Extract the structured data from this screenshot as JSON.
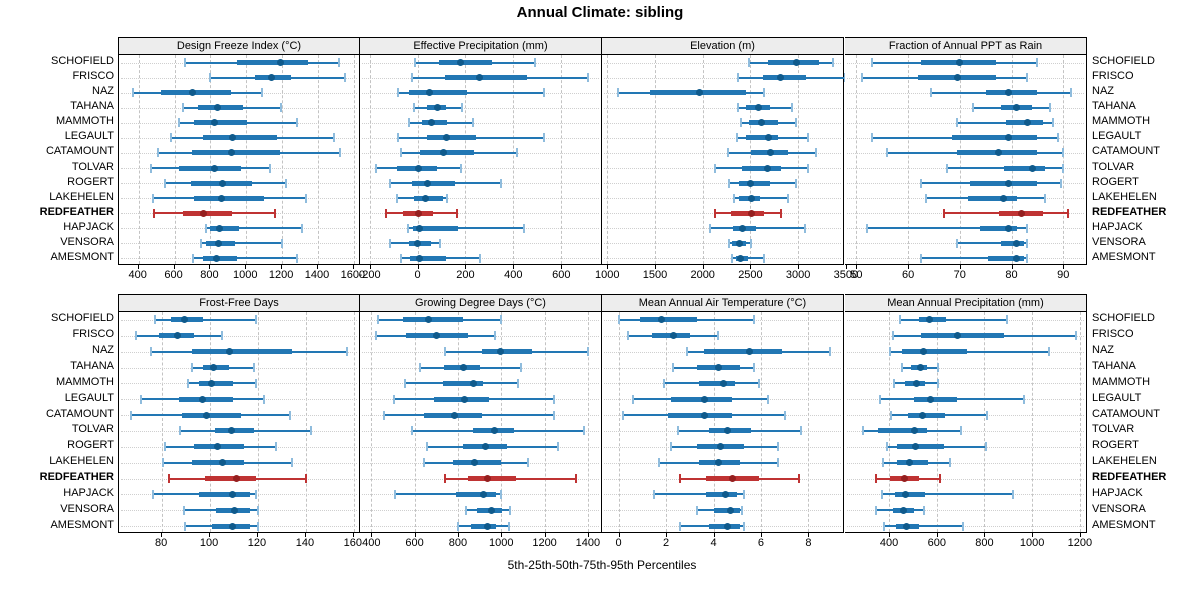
{
  "title": "Annual Climate: sibling",
  "caption": "5th-25th-50th-75th-95th Percentiles",
  "colors": {
    "blue_line": "#2277b4",
    "blue_cap": "#8fbcdd",
    "blue_box": "#2277b4",
    "blue_dot": "#0f5a8c",
    "red_line": "#bf3333",
    "red_cap": "#bf3333",
    "red_box": "#bf3333",
    "red_dot": "#951f1f",
    "header_bg": "#ededed",
    "grid_v": "#c3c3c3",
    "grid_h": "#cfcfcf",
    "border": "#000000"
  },
  "chart_data": {
    "type": "dotplot",
    "style": "5-25-50-75-95 percentile whisker plot, lattice layout, 2 rows x 4 panels",
    "legend": "whisker = 5th-95th, thick bar = 25th-75th, dot = 50th percentile",
    "highlight_station": "REDFEATHER",
    "stations": [
      "SCHOFIELD",
      "FRISCO",
      "NAZ",
      "TAHANA",
      "MAMMOTH",
      "LEGAULT",
      "CATAMOUNT",
      "TOLVAR",
      "ROGERT",
      "LAKEHELEN",
      "REDFEATHER",
      "HAPJACK",
      "VENSORA",
      "AMESMONT"
    ],
    "panels": [
      {
        "title": "Design Freeze Index (°C)",
        "ticks": [
          400,
          600,
          800,
          1000,
          1200,
          1400,
          1600
        ],
        "xlim": [
          290,
          1640
        ],
        "group": "top",
        "percentiles": [
          [
            660,
            950,
            1190,
            1345,
            1515
          ],
          [
            800,
            1050,
            1140,
            1250,
            1550
          ],
          [
            370,
            525,
            700,
            915,
            1090
          ],
          [
            645,
            730,
            840,
            980,
            1195
          ],
          [
            625,
            710,
            825,
            1005,
            1285
          ],
          [
            580,
            760,
            925,
            1170,
            1490
          ],
          [
            510,
            700,
            920,
            1190,
            1525
          ],
          [
            470,
            625,
            820,
            970,
            1130
          ],
          [
            545,
            690,
            865,
            1030,
            1220
          ],
          [
            480,
            710,
            860,
            1100,
            1335
          ],
          [
            485,
            645,
            760,
            920,
            1160
          ],
          [
            775,
            800,
            850,
            960,
            1310
          ],
          [
            750,
            775,
            845,
            935,
            1200
          ],
          [
            705,
            760,
            835,
            950,
            1285
          ]
        ]
      },
      {
        "title": "Effective Precipitation (mm)",
        "ticks": [
          -200,
          0,
          200,
          400,
          600
        ],
        "xlim": [
          -240,
          770
        ],
        "group": "top",
        "percentiles": [
          [
            -10,
            90,
            180,
            310,
            490
          ],
          [
            -25,
            115,
            260,
            455,
            710
          ],
          [
            -80,
            -35,
            50,
            205,
            530
          ],
          [
            -15,
            40,
            85,
            120,
            185
          ],
          [
            -35,
            20,
            60,
            125,
            230
          ],
          [
            -80,
            40,
            120,
            245,
            530
          ],
          [
            -70,
            10,
            110,
            235,
            415
          ],
          [
            -175,
            -85,
            5,
            80,
            180
          ],
          [
            -115,
            -25,
            40,
            155,
            350
          ],
          [
            -85,
            -15,
            35,
            105,
            122
          ],
          [
            -130,
            -60,
            5,
            65,
            165
          ],
          [
            -40,
            -20,
            10,
            170,
            445
          ],
          [
            -115,
            -35,
            0,
            55,
            95
          ],
          [
            -70,
            -30,
            10,
            120,
            260
          ]
        ]
      },
      {
        "title": "Elevation (m)",
        "ticks": [
          1000,
          1500,
          2000,
          2500,
          3000,
          3500
        ],
        "xlim": [
          945,
          3480
        ],
        "group": "top",
        "percentiles": [
          [
            2490,
            2680,
            2985,
            3220,
            3360
          ],
          [
            2370,
            2630,
            2820,
            3080,
            3490
          ],
          [
            1115,
            1445,
            1965,
            2455,
            2645
          ],
          [
            2370,
            2455,
            2585,
            2700,
            2940
          ],
          [
            2405,
            2490,
            2620,
            2785,
            2975
          ],
          [
            2355,
            2455,
            2690,
            2785,
            3100
          ],
          [
            2265,
            2505,
            2715,
            2890,
            3185
          ],
          [
            2125,
            2415,
            2675,
            2820,
            3100
          ],
          [
            2280,
            2385,
            2505,
            2700,
            2975
          ],
          [
            2325,
            2385,
            2515,
            2605,
            2890
          ],
          [
            2125,
            2300,
            2515,
            2645,
            2820
          ],
          [
            2080,
            2315,
            2415,
            2560,
            3070
          ],
          [
            2280,
            2310,
            2385,
            2455,
            2505
          ],
          [
            2310,
            2345,
            2400,
            2470,
            2645
          ]
        ]
      },
      {
        "title": "Fraction of Annual PPT as Rain",
        "ticks": [
          50,
          60,
          70,
          80,
          90
        ],
        "xlim": [
          47.8,
          94.6
        ],
        "group": "top",
        "percentiles": [
          [
            53,
            62.5,
            70,
            77,
            85
          ],
          [
            51,
            62,
            69.5,
            77,
            83
          ],
          [
            64.5,
            75,
            79.5,
            85,
            91.5
          ],
          [
            72.5,
            78,
            81,
            84,
            87.5
          ],
          [
            69.5,
            79,
            83,
            86,
            88
          ],
          [
            53,
            68.5,
            79.5,
            85,
            89
          ],
          [
            56,
            69.5,
            77.5,
            85,
            90
          ],
          [
            67.5,
            78.5,
            84,
            86.5,
            90
          ],
          [
            62.5,
            72,
            79.5,
            85,
            89.5
          ],
          [
            63.5,
            71.5,
            78.5,
            81,
            86.5
          ],
          [
            67,
            77.5,
            82,
            86,
            91
          ],
          [
            52,
            74,
            79.5,
            81,
            83
          ],
          [
            69.5,
            78,
            81,
            82.5,
            83
          ],
          [
            62.5,
            75.5,
            81,
            82.5,
            83
          ]
        ]
      },
      {
        "title": "Frost-Free Days",
        "ticks": [
          80,
          100,
          120,
          140,
          160
        ],
        "xlim": [
          62,
          163
        ],
        "group": "bottom",
        "percentiles": [
          [
            77,
            83.5,
            89.5,
            97,
            119
          ],
          [
            69,
            78.5,
            86.5,
            93.5,
            105
          ],
          [
            75.5,
            92.5,
            108,
            134,
            157
          ],
          [
            92.5,
            97,
            101.5,
            108,
            118.5
          ],
          [
            91,
            95.5,
            100.5,
            109.5,
            119
          ],
          [
            71,
            87,
            97,
            109.5,
            122.5
          ],
          [
            67,
            88.5,
            98.5,
            113,
            133.5
          ],
          [
            87.5,
            102,
            109,
            118.5,
            142
          ],
          [
            81,
            93.5,
            103,
            114,
            127.5
          ],
          [
            80.5,
            92.5,
            105,
            114,
            134
          ],
          [
            83,
            98,
            111,
            119,
            140
          ],
          [
            76,
            95.5,
            109.5,
            116.5,
            119
          ],
          [
            89,
            102.5,
            110,
            116.5,
            120
          ],
          [
            89.5,
            101,
            109.5,
            116.5,
            120
          ]
        ]
      },
      {
        "title": "Growing Degree Days (°C)",
        "ticks": [
          400,
          600,
          800,
          1000,
          1200,
          1400
        ],
        "xlim": [
          348,
          1465
        ],
        "group": "bottom",
        "percentiles": [
          [
            430,
            545,
            665,
            825,
            1000
          ],
          [
            420,
            560,
            700,
            845,
            970
          ],
          [
            740,
            910,
            995,
            1140,
            1400
          ],
          [
            625,
            735,
            825,
            900,
            1090
          ],
          [
            555,
            730,
            870,
            915,
            1075
          ],
          [
            505,
            690,
            830,
            945,
            1245
          ],
          [
            460,
            645,
            785,
            910,
            1245
          ],
          [
            590,
            870,
            970,
            1060,
            1380
          ],
          [
            655,
            825,
            925,
            1025,
            1260
          ],
          [
            645,
            775,
            875,
            1000,
            1125
          ],
          [
            740,
            845,
            935,
            1070,
            1345
          ],
          [
            510,
            790,
            920,
            975,
            1000
          ],
          [
            835,
            890,
            955,
            1003,
            1040
          ],
          [
            800,
            860,
            935,
            975,
            1035
          ]
        ]
      },
      {
        "title": "Mean Annual Air Temperature (°C)",
        "ticks": [
          0,
          2,
          4,
          6,
          8
        ],
        "xlim": [
          -0.7,
          9.5
        ],
        "group": "bottom",
        "percentiles": [
          [
            0,
            0.9,
            1.8,
            3.3,
            5.7
          ],
          [
            0.4,
            1.4,
            2.3,
            3.0,
            4.2
          ],
          [
            2.9,
            3.6,
            5.5,
            6.9,
            8.9
          ],
          [
            2.3,
            3.3,
            4.2,
            5.1,
            5.7
          ],
          [
            1.9,
            3.4,
            4.4,
            4.9,
            5.9
          ],
          [
            0.6,
            2.2,
            3.6,
            4.8,
            6.3
          ],
          [
            0.2,
            2.1,
            3.6,
            4.8,
            7.0
          ],
          [
            2.5,
            3.8,
            4.6,
            5.6,
            7.7
          ],
          [
            2.2,
            3.3,
            4.3,
            5.3,
            6.7
          ],
          [
            1.7,
            3.4,
            4.2,
            5.1,
            6.7
          ],
          [
            2.6,
            3.7,
            4.8,
            5.9,
            7.6
          ],
          [
            1.5,
            3.7,
            4.5,
            5.0,
            5.3
          ],
          [
            3.3,
            4.0,
            4.7,
            5.1,
            5.2
          ],
          [
            2.6,
            3.8,
            4.6,
            5.1,
            5.3
          ]
        ]
      },
      {
        "title": "Mean Annual Precipitation (mm)",
        "ticks": [
          400,
          600,
          800,
          1000,
          1200
        ],
        "xlim": [
          215,
          1230
        ],
        "group": "bottom",
        "percentiles": [
          [
            445,
            525,
            570,
            640,
            895
          ],
          [
            415,
            535,
            685,
            880,
            1185
          ],
          [
            405,
            455,
            545,
            725,
            1070
          ],
          [
            455,
            490,
            530,
            560,
            605
          ],
          [
            420,
            465,
            515,
            550,
            605
          ],
          [
            360,
            505,
            575,
            685,
            965
          ],
          [
            410,
            480,
            540,
            635,
            810
          ],
          [
            290,
            355,
            505,
            560,
            700
          ],
          [
            390,
            435,
            510,
            630,
            805
          ],
          [
            375,
            435,
            485,
            565,
            655
          ],
          [
            345,
            405,
            465,
            525,
            615
          ],
          [
            370,
            425,
            470,
            550,
            920
          ],
          [
            345,
            415,
            460,
            505,
            545
          ],
          [
            380,
            430,
            475,
            525,
            710
          ]
        ]
      }
    ]
  }
}
